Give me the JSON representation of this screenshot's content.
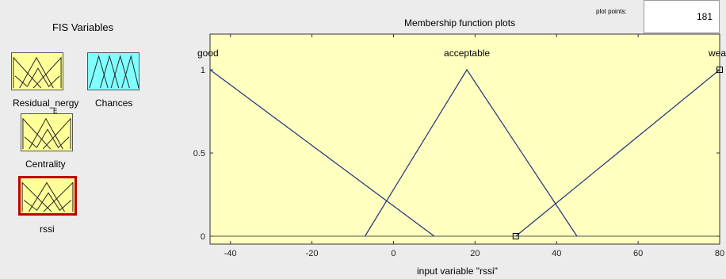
{
  "fis_panel": {
    "title": "FIS Variables",
    "variables": [
      {
        "label": "Residual_nergy",
        "sub": "E",
        "color": "#ffff99"
      },
      {
        "label": "Chances",
        "color": "#80ffff"
      },
      {
        "label": "Centrality",
        "color": "#ffff99"
      },
      {
        "label": "rssi",
        "color": "#ffff99",
        "selected": true
      }
    ]
  },
  "plot_points": {
    "label": "plot points:",
    "value": "181"
  },
  "chart_data": {
    "type": "line",
    "title": "Membership function plots",
    "xlabel": "input variable \"rssi\"",
    "ylabel": "",
    "xlim": [
      -45,
      80
    ],
    "ylim": [
      0,
      1
    ],
    "xticks": [
      -40,
      -20,
      0,
      20,
      40,
      60,
      80
    ],
    "yticks": [
      0,
      0.5,
      1
    ],
    "ytick_labels": [
      "0",
      "0.5",
      "1"
    ],
    "grid": false,
    "background": "#ffffc0",
    "line_color": "#1f2f7f",
    "series": [
      {
        "name": "good",
        "x": [
          -45,
          10
        ],
        "y": [
          1,
          0
        ],
        "label_x": -45
      },
      {
        "name": "acceptable",
        "x": [
          -7,
          18,
          45
        ],
        "y": [
          0,
          1,
          0
        ],
        "label_x": 18
      },
      {
        "name": "wea",
        "x": [
          30,
          80
        ],
        "y": [
          0,
          1
        ],
        "label_x": 80
      }
    ],
    "markers": [
      {
        "x": 30,
        "y": 0
      },
      {
        "x": 80,
        "y": 1
      }
    ]
  }
}
